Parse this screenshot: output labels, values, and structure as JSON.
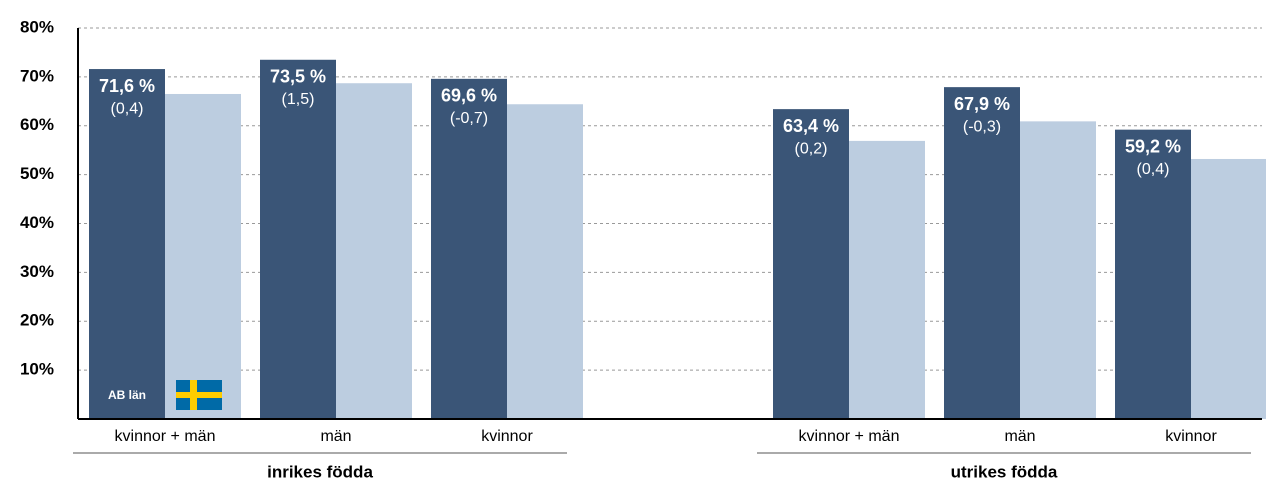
{
  "chart_data": {
    "type": "bar",
    "categories": [
      "kvinnor + män",
      "män",
      "kvinnor",
      "kvinnor + män",
      "män",
      "kvinnor"
    ],
    "group_labels": [
      "inrikes födda",
      "utrikes födda"
    ],
    "series": [
      {
        "name": "AB län",
        "color": "#3a5577",
        "values": [
          71.6,
          73.5,
          69.6,
          63.4,
          67.9,
          59.2
        ],
        "value_labels": [
          "71,6 %",
          "73,5 %",
          "69,6 %",
          "63,4 %",
          "67,9 %",
          "59,2 %"
        ],
        "change_labels": [
          "(0,4)",
          "(1,5)",
          "(-0,7)",
          "(0,2)",
          "(-0,3)",
          "(0,4)"
        ]
      },
      {
        "color": "#bccde0",
        "values": [
          66.5,
          68.7,
          64.4,
          56.9,
          60.9,
          53.2
        ]
      }
    ],
    "ylim": [
      0,
      80
    ],
    "yticks": [
      {
        "value": 10,
        "label": "10%"
      },
      {
        "value": 20,
        "label": "20%"
      },
      {
        "value": 30,
        "label": "30%"
      },
      {
        "value": 40,
        "label": "40%"
      },
      {
        "value": 50,
        "label": "50%"
      },
      {
        "value": 60,
        "label": "60%"
      },
      {
        "value": 70,
        "label": "70%"
      },
      {
        "value": 80,
        "label": "80%"
      }
    ],
    "grid": true
  }
}
